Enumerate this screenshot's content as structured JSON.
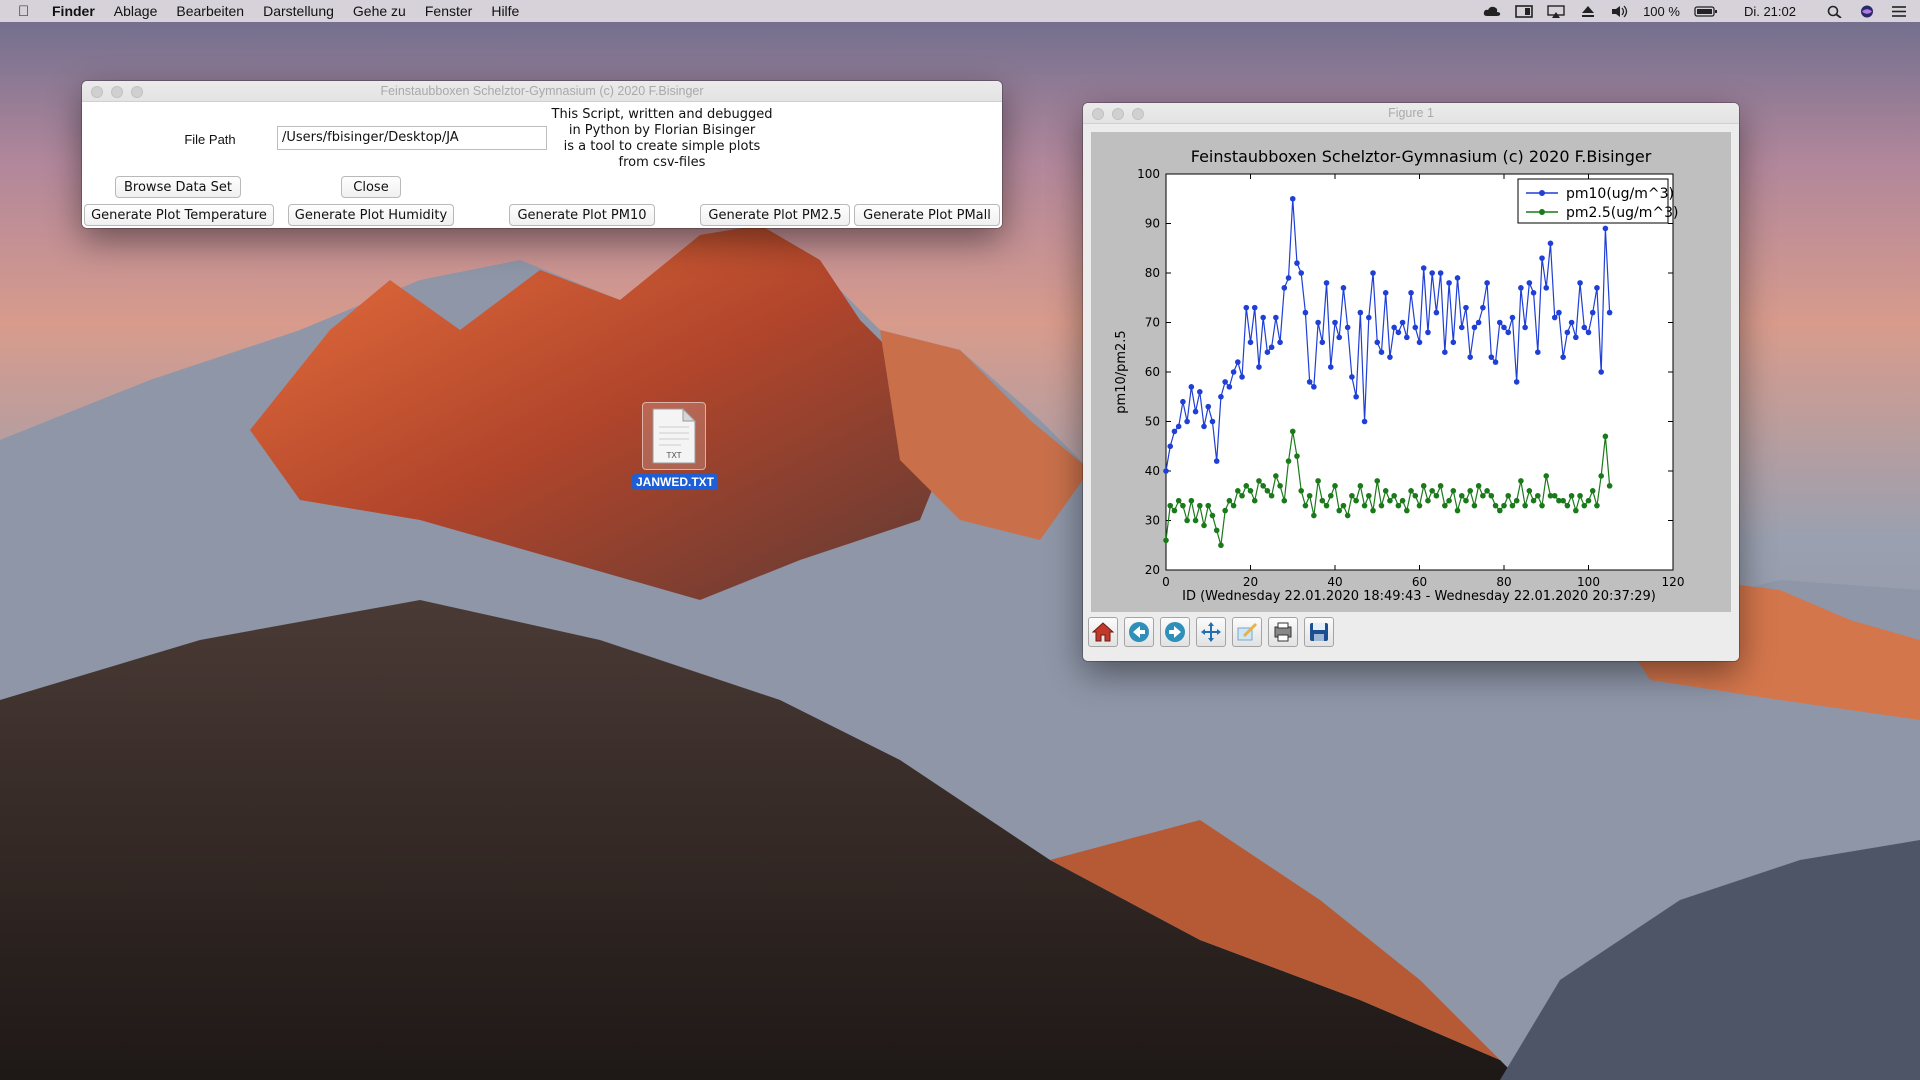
{
  "menubar": {
    "app": "Finder",
    "items": [
      "Ablage",
      "Bearbeiten",
      "Darstellung",
      "Gehe zu",
      "Fenster",
      "Hilfe"
    ],
    "battery": "100 %",
    "clock": "Di. 21:02"
  },
  "app_window": {
    "title": "Feinstaubboxen Schelztor-Gymnasium (c) 2020 F.Bisinger",
    "file_path_label": "File Path",
    "file_path_value": "/Users/fbisinger/Desktop/JA",
    "info_text": "This Script, written and debugged\nin Python by Florian Bisinger\nis a tool to create simple plots\nfrom csv-files",
    "buttons": {
      "browse": "Browse Data Set",
      "close": "Close",
      "temperature": "Generate Plot Temperature",
      "humidity": "Generate Plot Humidity",
      "pm10": "Generate Plot PM10",
      "pm25": "Generate Plot PM2.5",
      "pmall": "Generate Plot PMall"
    }
  },
  "figure_window": {
    "title": "Figure 1",
    "toolbar_icons": [
      "home-icon",
      "back-arrow-icon",
      "forward-arrow-icon",
      "pan-icon",
      "zoom-edit-icon",
      "configure-subplots-icon",
      "save-icon"
    ]
  },
  "desktop_file": {
    "name": "JANWED.TXT",
    "type_badge": "TXT"
  },
  "chart_data": {
    "type": "line",
    "title": "Feinstaubboxen Schelztor-Gymnasium (c) 2020 F.Bisinger",
    "xlabel": "ID (Wednesday 22.01.2020 18:49:43 - Wednesday 22.01.2020 20:37:29)",
    "ylabel": "pm10/pm2.5",
    "xlim": [
      0,
      120
    ],
    "ylim": [
      20,
      100
    ],
    "xticks": [
      0,
      20,
      40,
      60,
      80,
      100,
      120
    ],
    "yticks": [
      20,
      30,
      40,
      50,
      60,
      70,
      80,
      90,
      100
    ],
    "legend_position": "top-right",
    "series": [
      {
        "name": "pm10(ug/m^3)",
        "color": "#1f3fd6",
        "x": [
          0,
          1,
          2,
          3,
          4,
          5,
          6,
          7,
          8,
          9,
          10,
          11,
          12,
          13,
          14,
          15,
          16,
          17,
          18,
          19,
          20,
          21,
          22,
          23,
          24,
          25,
          26,
          27,
          28,
          29,
          30,
          31,
          32,
          33,
          34,
          35,
          36,
          37,
          38,
          39,
          40,
          41,
          42,
          43,
          44,
          45,
          46,
          47,
          48,
          49,
          50,
          51,
          52,
          53,
          54,
          55,
          56,
          57,
          58,
          59,
          60,
          61,
          62,
          63,
          64,
          65,
          66,
          67,
          68,
          69,
          70,
          71,
          72,
          73,
          74,
          75,
          76,
          77,
          78,
          79,
          80,
          81,
          82,
          83,
          84,
          85,
          86,
          87,
          88,
          89,
          90,
          91,
          92,
          93,
          94,
          95,
          96,
          97,
          98,
          99,
          100,
          101,
          102,
          103,
          104,
          105
        ],
        "y": [
          40,
          45,
          48,
          49,
          54,
          50,
          57,
          52,
          56,
          49,
          53,
          50,
          42,
          55,
          58,
          57,
          60,
          62,
          59,
          73,
          66,
          73,
          61,
          71,
          64,
          65,
          71,
          66,
          77,
          79,
          95,
          82,
          80,
          72,
          58,
          57,
          70,
          66,
          78,
          61,
          70,
          67,
          77,
          69,
          59,
          55,
          72,
          50,
          71,
          80,
          66,
          64,
          76,
          63,
          69,
          68,
          70,
          67,
          76,
          69,
          66,
          81,
          68,
          80,
          72,
          80,
          64,
          78,
          66,
          79,
          69,
          73,
          63,
          69,
          70,
          73,
          78,
          63,
          62,
          70,
          69,
          68,
          71,
          58,
          77,
          69,
          78,
          76,
          64,
          83,
          77,
          86,
          71,
          72,
          63,
          68,
          70,
          67,
          78,
          69,
          68,
          72,
          77,
          60,
          89,
          72
        ]
      },
      {
        "name": "pm2.5(ug/m^3)",
        "color": "#1a7a1a",
        "x": [
          0,
          1,
          2,
          3,
          4,
          5,
          6,
          7,
          8,
          9,
          10,
          11,
          12,
          13,
          14,
          15,
          16,
          17,
          18,
          19,
          20,
          21,
          22,
          23,
          24,
          25,
          26,
          27,
          28,
          29,
          30,
          31,
          32,
          33,
          34,
          35,
          36,
          37,
          38,
          39,
          40,
          41,
          42,
          43,
          44,
          45,
          46,
          47,
          48,
          49,
          50,
          51,
          52,
          53,
          54,
          55,
          56,
          57,
          58,
          59,
          60,
          61,
          62,
          63,
          64,
          65,
          66,
          67,
          68,
          69,
          70,
          71,
          72,
          73,
          74,
          75,
          76,
          77,
          78,
          79,
          80,
          81,
          82,
          83,
          84,
          85,
          86,
          87,
          88,
          89,
          90,
          91,
          92,
          93,
          94,
          95,
          96,
          97,
          98,
          99,
          100,
          101,
          102,
          103,
          104,
          105
        ],
        "y": [
          26,
          33,
          32,
          34,
          33,
          30,
          34,
          30,
          33,
          29,
          33,
          31,
          28,
          25,
          32,
          34,
          33,
          36,
          35,
          37,
          36,
          34,
          38,
          37,
          36,
          35,
          39,
          37,
          34,
          42,
          48,
          43,
          36,
          33,
          35,
          31,
          38,
          34,
          33,
          35,
          37,
          32,
          33,
          31,
          35,
          34,
          37,
          33,
          35,
          32,
          38,
          33,
          36,
          34,
          35,
          33,
          34,
          32,
          36,
          35,
          33,
          37,
          34,
          36,
          35,
          37,
          33,
          34,
          36,
          32,
          35,
          34,
          36,
          33,
          37,
          35,
          36,
          35,
          33,
          32,
          33,
          35,
          33,
          34,
          38,
          33,
          36,
          34,
          35,
          33,
          39,
          35,
          35,
          34,
          34,
          33,
          35,
          32,
          35,
          33,
          34,
          36,
          33,
          39,
          47,
          37
        ]
      }
    ]
  }
}
